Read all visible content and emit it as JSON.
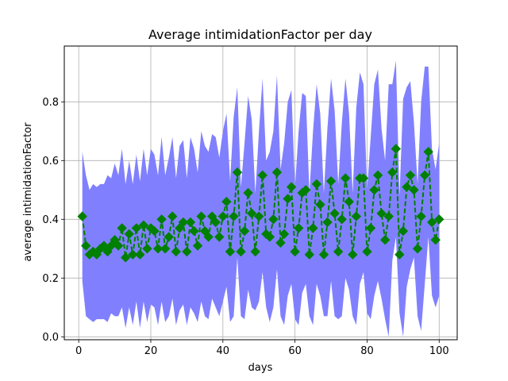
{
  "chart_data": {
    "type": "line",
    "title": "Average intimidationFactor per day",
    "xlabel": "days",
    "ylabel": "average intimidationFactor",
    "xlim": [
      -4,
      105
    ],
    "ylim": [
      -0.01,
      0.99
    ],
    "xticks": [
      0,
      20,
      40,
      60,
      80,
      100
    ],
    "yticks": [
      0.0,
      0.2,
      0.4,
      0.6,
      0.8
    ],
    "ytick_labels": [
      "0.0",
      "0.2",
      "0.4",
      "0.6",
      "0.8"
    ],
    "grid": true,
    "colors": {
      "band": "#8080ff",
      "line": "#008000",
      "marker": "#008000"
    },
    "series": [
      {
        "type": "line",
        "style": "dashed",
        "marker": "diamond",
        "x": [
          1,
          2,
          3,
          4,
          5,
          6,
          7,
          8,
          9,
          10,
          11,
          12,
          13,
          14,
          15,
          16,
          17,
          18,
          19,
          20,
          21,
          22,
          23,
          24,
          25,
          26,
          27,
          28,
          29,
          30,
          31,
          32,
          33,
          34,
          35,
          36,
          37,
          38,
          39,
          40,
          41,
          42,
          43,
          44,
          45,
          46,
          47,
          48,
          49,
          50,
          51,
          52,
          53,
          54,
          55,
          56,
          57,
          58,
          59,
          60,
          61,
          62,
          63,
          64,
          65,
          66,
          67,
          68,
          69,
          70,
          71,
          72,
          73,
          74,
          75,
          76,
          77,
          78,
          79,
          80,
          81,
          82,
          83,
          84,
          85,
          86,
          87,
          88,
          89,
          90,
          91,
          92,
          93,
          94,
          95,
          96,
          97,
          98,
          99,
          100
        ],
        "y": [
          0.41,
          0.31,
          0.28,
          0.29,
          0.28,
          0.3,
          0.31,
          0.29,
          0.31,
          0.33,
          0.31,
          0.37,
          0.27,
          0.35,
          0.28,
          0.37,
          0.28,
          0.38,
          0.3,
          0.37,
          0.36,
          0.3,
          0.4,
          0.3,
          0.34,
          0.41,
          0.29,
          0.37,
          0.39,
          0.29,
          0.39,
          0.36,
          0.31,
          0.41,
          0.36,
          0.34,
          0.41,
          0.39,
          0.34,
          0.41,
          0.46,
          0.29,
          0.41,
          0.56,
          0.29,
          0.36,
          0.49,
          0.42,
          0.29,
          0.41,
          0.55,
          0.35,
          0.34,
          0.4,
          0.56,
          0.32,
          0.35,
          0.47,
          0.51,
          0.29,
          0.37,
          0.49,
          0.5,
          0.28,
          0.37,
          0.52,
          0.45,
          0.28,
          0.39,
          0.53,
          0.42,
          0.29,
          0.4,
          0.54,
          0.46,
          0.28,
          0.41,
          0.54,
          0.54,
          0.29,
          0.37,
          0.5,
          0.55,
          0.42,
          0.33,
          0.41,
          0.56,
          0.64,
          0.28,
          0.36,
          0.51,
          0.55,
          0.5,
          0.3,
          0.41,
          0.55,
          0.63,
          0.39,
          0.33,
          0.4
        ]
      },
      {
        "type": "area",
        "x": [
          1,
          2,
          3,
          4,
          5,
          6,
          7,
          8,
          9,
          10,
          11,
          12,
          13,
          14,
          15,
          16,
          17,
          18,
          19,
          20,
          21,
          22,
          23,
          24,
          25,
          26,
          27,
          28,
          29,
          30,
          31,
          32,
          33,
          34,
          35,
          36,
          37,
          38,
          39,
          40,
          41,
          42,
          43,
          44,
          45,
          46,
          47,
          48,
          49,
          50,
          51,
          52,
          53,
          54,
          55,
          56,
          57,
          58,
          59,
          60,
          61,
          62,
          63,
          64,
          65,
          66,
          67,
          68,
          69,
          70,
          71,
          72,
          73,
          74,
          75,
          76,
          77,
          78,
          79,
          80,
          81,
          82,
          83,
          84,
          85,
          86,
          87,
          88,
          89,
          90,
          91,
          92,
          93,
          94,
          95,
          96,
          97,
          98,
          99,
          100
        ],
        "upper": [
          0.63,
          0.55,
          0.5,
          0.52,
          0.51,
          0.52,
          0.52,
          0.55,
          0.54,
          0.59,
          0.55,
          0.64,
          0.52,
          0.6,
          0.52,
          0.62,
          0.53,
          0.64,
          0.55,
          0.64,
          0.62,
          0.55,
          0.68,
          0.55,
          0.61,
          0.68,
          0.54,
          0.65,
          0.67,
          0.54,
          0.68,
          0.64,
          0.56,
          0.7,
          0.65,
          0.63,
          0.69,
          0.68,
          0.61,
          0.7,
          0.76,
          0.53,
          0.75,
          0.85,
          0.51,
          0.66,
          0.82,
          0.74,
          0.49,
          0.7,
          0.88,
          0.6,
          0.63,
          0.7,
          0.89,
          0.57,
          0.66,
          0.8,
          0.84,
          0.51,
          0.7,
          0.83,
          0.82,
          0.49,
          0.7,
          0.86,
          0.76,
          0.49,
          0.71,
          0.88,
          0.77,
          0.52,
          0.73,
          0.88,
          0.76,
          0.49,
          0.78,
          0.9,
          0.86,
          0.5,
          0.68,
          0.86,
          0.91,
          0.71,
          0.6,
          0.86,
          0.86,
          0.94,
          0.48,
          0.81,
          0.85,
          0.87,
          0.73,
          0.52,
          0.8,
          0.92,
          0.92,
          0.64,
          0.57,
          0.66
        ],
        "lower": [
          0.19,
          0.07,
          0.06,
          0.05,
          0.06,
          0.06,
          0.06,
          0.05,
          0.08,
          0.07,
          0.07,
          0.1,
          0.03,
          0.1,
          0.04,
          0.12,
          0.03,
          0.12,
          0.05,
          0.11,
          0.1,
          0.04,
          0.12,
          0.05,
          0.07,
          0.13,
          0.04,
          0.09,
          0.11,
          0.04,
          0.1,
          0.08,
          0.05,
          0.12,
          0.07,
          0.06,
          0.13,
          0.1,
          0.07,
          0.12,
          0.17,
          0.05,
          0.07,
          0.27,
          0.07,
          0.06,
          0.16,
          0.1,
          0.09,
          0.12,
          0.22,
          0.1,
          0.05,
          0.1,
          0.23,
          0.07,
          0.04,
          0.14,
          0.18,
          0.06,
          0.04,
          0.15,
          0.18,
          0.07,
          0.04,
          0.18,
          0.14,
          0.07,
          0.07,
          0.19,
          0.07,
          0.06,
          0.07,
          0.2,
          0.16,
          0.07,
          0.04,
          0.18,
          0.22,
          0.08,
          0.06,
          0.14,
          0.19,
          0.13,
          0.06,
          0.0,
          0.26,
          0.34,
          0.08,
          0.0,
          0.17,
          0.23,
          0.27,
          0.07,
          0.02,
          0.18,
          0.34,
          0.14,
          0.1,
          0.14
        ]
      }
    ]
  }
}
